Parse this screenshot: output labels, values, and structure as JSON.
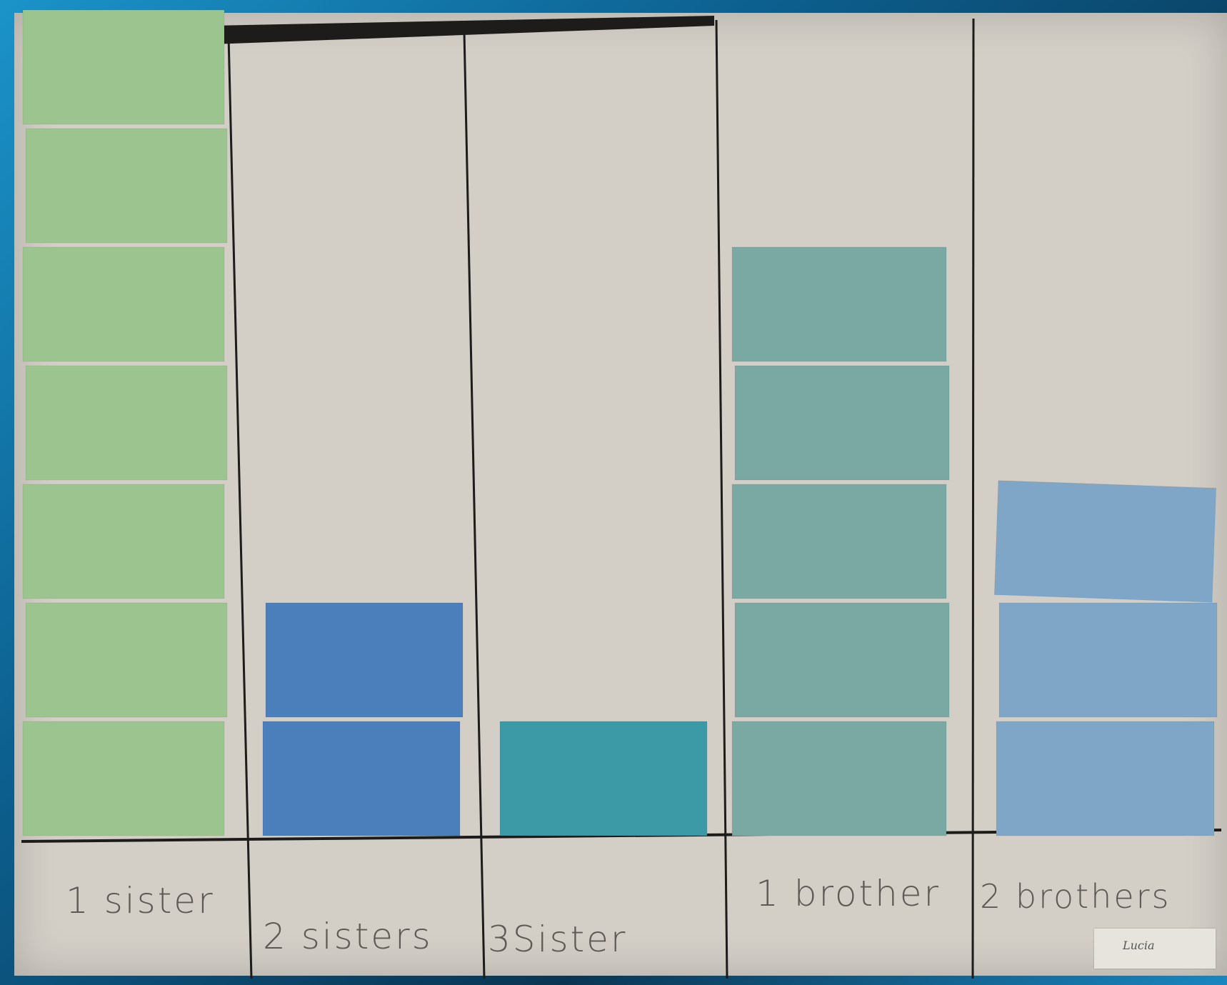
{
  "chart_data": {
    "type": "bar",
    "title": "",
    "xlabel": "",
    "ylabel": "",
    "categories": [
      "1 sister",
      "2 sisters",
      "3Sister",
      "1 brother",
      "2 brothers"
    ],
    "values": [
      7,
      2,
      1,
      5,
      3
    ],
    "ylim": [
      0,
      7
    ],
    "grid": false,
    "legend": "none",
    "bar_colors": [
      "#9cc48f",
      "#4a7fbc",
      "#3b9aa6",
      "#7aa8a3",
      "#7fa6c6"
    ]
  },
  "signature": "Lucia",
  "colors": {
    "paper": "#d3cfc7",
    "ink": "#1e1c1a",
    "frame": "#1480b8"
  }
}
